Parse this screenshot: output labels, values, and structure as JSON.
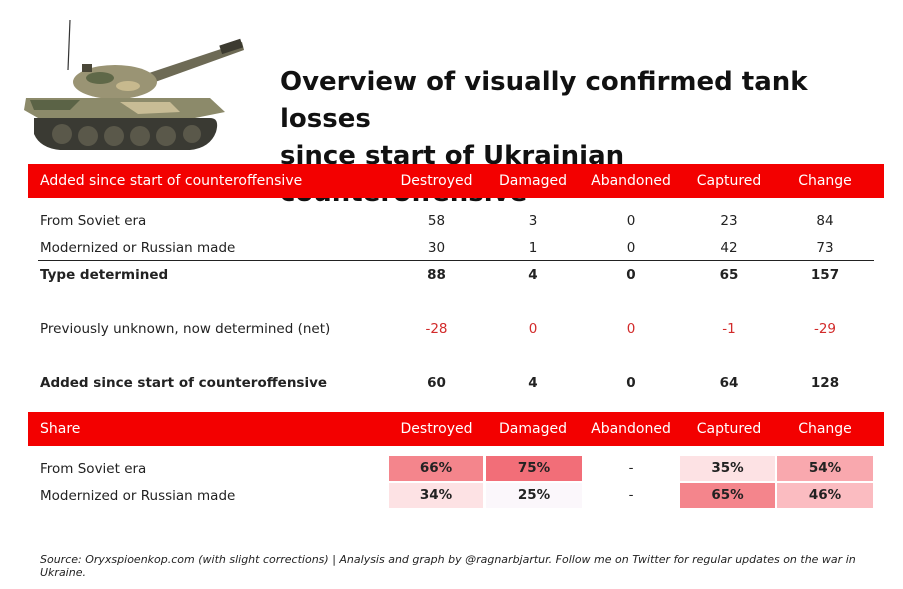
{
  "title_line1": "Overview of visually confirmed tank losses",
  "title_line2": "since start of Ukrainian counteroffensive",
  "header1": {
    "label": "Added since start of counteroffensive",
    "cols": [
      "Destroyed",
      "Damaged",
      "Abandoned",
      "Captured",
      "Change"
    ]
  },
  "rows": [
    {
      "label": "From Soviet era",
      "values": [
        "58",
        "3",
        "0",
        "23",
        "84"
      ]
    },
    {
      "label": "Modernized or Russian made",
      "values": [
        "30",
        "1",
        "0",
        "42",
        "73"
      ]
    },
    {
      "label": "Type determined",
      "values": [
        "88",
        "4",
        "0",
        "65",
        "157"
      ]
    },
    {
      "label": "Previously unknown, now determined (net)",
      "values": [
        "-28",
        "0",
        "0",
        "-1",
        "-29"
      ]
    },
    {
      "label": "Added since start of counteroffensive",
      "values": [
        "60",
        "4",
        "0",
        "64",
        "128"
      ]
    }
  ],
  "header2": {
    "label": "Share",
    "cols": [
      "Destroyed",
      "Damaged",
      "Abandoned",
      "Captured",
      "Change"
    ]
  },
  "share_rows": [
    {
      "label": "From Soviet era",
      "values": [
        "66%",
        "75%",
        "-",
        "35%",
        "54%"
      ],
      "colors": [
        "#f4858c",
        "#f26e78",
        "",
        "#fde2e4",
        "#f9a8ae"
      ]
    },
    {
      "label": "Modernized or Russian made",
      "values": [
        "34%",
        "25%",
        "-",
        "65%",
        "46%"
      ],
      "colors": [
        "#fde2e4",
        "#fbf7fb",
        "",
        "#f4858c",
        "#fbbcc1"
      ]
    }
  ],
  "source": "Source: Oryxspioenkop.com (with slight corrections) | Analysis and graph by @ragnarbjartur. Follow me on Twitter for regular updates on the war in Ukraine."
}
